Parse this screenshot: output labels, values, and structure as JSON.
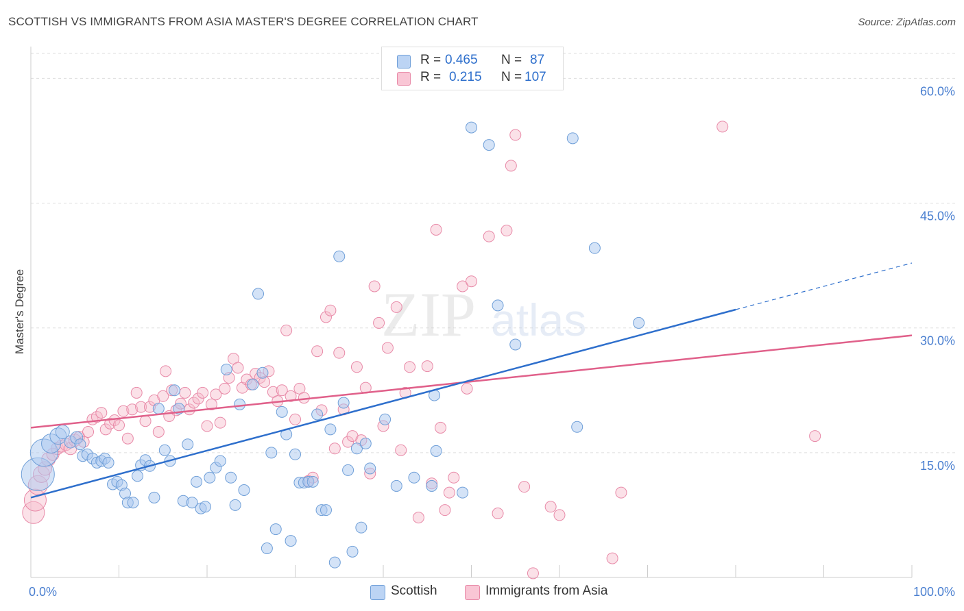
{
  "header": {
    "title": "SCOTTISH VS IMMIGRANTS FROM ASIA MASTER'S DEGREE CORRELATION CHART",
    "source": "Source: ZipAtlas.com"
  },
  "watermark": {
    "zip": "ZIP",
    "atlas": "atlas"
  },
  "legend": {
    "rows": [
      {
        "r_label": "R =",
        "r_value": "0.465",
        "n_label": "N =",
        "n_value": "87"
      },
      {
        "r_label": "R =",
        "r_value": "0.215",
        "n_label": "N =",
        "n_value": "107"
      }
    ]
  },
  "colors": {
    "blue_fill": "#a9c8f0",
    "blue_stroke": "#6f9fd8",
    "blue_line": "#2e6fcc",
    "pink_fill": "#f6bccd",
    "pink_stroke": "#e88aa8",
    "pink_line": "#e0608a",
    "tick_label": "#4a7fd0",
    "grid": "#dddddd"
  },
  "chart_data": {
    "type": "scatter",
    "title": "SCOTTISH VS IMMIGRANTS FROM ASIA MASTER'S DEGREE CORRELATION CHART",
    "xlabel": "",
    "ylabel": "Master's Degree",
    "xlim": [
      0,
      100
    ],
    "ylim": [
      0,
      63
    ],
    "x_tick_labels": [
      "0.0%",
      "100.0%"
    ],
    "y_ticks": [
      15,
      30,
      45,
      60
    ],
    "y_tick_labels": [
      "15.0%",
      "30.0%",
      "45.0%",
      "60.0%"
    ],
    "grid": true,
    "legend_position": "top-center",
    "series": [
      {
        "name": "Scottish",
        "r": 0.465,
        "n": 87,
        "trend": {
          "x0": 0,
          "y0": 9.6,
          "x1": 80,
          "y1": 32.2,
          "dashed_to_x": 100,
          "dashed_to_y": 37.8
        },
        "points": [
          [
            0.8,
            12.4,
            24
          ],
          [
            1.5,
            15.0,
            20
          ],
          [
            2.3,
            16.1,
            14
          ],
          [
            3.1,
            17.0,
            12
          ],
          [
            3.6,
            17.5,
            10
          ],
          [
            4.5,
            16.3,
            9
          ],
          [
            5.2,
            16.8,
            9
          ],
          [
            5.6,
            16.0,
            8
          ],
          [
            5.9,
            14.6,
            8
          ],
          [
            6.4,
            14.8,
            8
          ],
          [
            7.0,
            14.3,
            8
          ],
          [
            7.5,
            13.8,
            8
          ],
          [
            8.0,
            14.0,
            8
          ],
          [
            8.4,
            14.3,
            8
          ],
          [
            8.8,
            13.8,
            8
          ],
          [
            9.3,
            11.2,
            8
          ],
          [
            9.8,
            11.5,
            8
          ],
          [
            10.3,
            11.1,
            8
          ],
          [
            10.7,
            10.1,
            8
          ],
          [
            11.0,
            9.0,
            8
          ],
          [
            11.6,
            9.0,
            8
          ],
          [
            12.1,
            12.2,
            8
          ],
          [
            12.5,
            13.5,
            8
          ],
          [
            13.0,
            14.1,
            8
          ],
          [
            13.5,
            13.4,
            8
          ],
          [
            14.0,
            9.6,
            8
          ],
          [
            14.5,
            20.3,
            8
          ],
          [
            15.2,
            15.3,
            8
          ],
          [
            15.8,
            14.0,
            8
          ],
          [
            16.3,
            22.5,
            8
          ],
          [
            16.8,
            20.3,
            8
          ],
          [
            17.3,
            9.2,
            8
          ],
          [
            17.8,
            16.0,
            8
          ],
          [
            18.3,
            9.0,
            8
          ],
          [
            18.8,
            11.5,
            8
          ],
          [
            19.3,
            8.3,
            8
          ],
          [
            19.8,
            8.5,
            8
          ],
          [
            20.3,
            12.0,
            8
          ],
          [
            21.0,
            13.2,
            8
          ],
          [
            21.5,
            14.0,
            8
          ],
          [
            22.2,
            25.0,
            8
          ],
          [
            22.7,
            12.0,
            8
          ],
          [
            23.2,
            8.7,
            8
          ],
          [
            23.7,
            20.8,
            8
          ],
          [
            24.2,
            10.5,
            8
          ],
          [
            25.2,
            23.2,
            8
          ],
          [
            25.8,
            34.1,
            8
          ],
          [
            26.3,
            24.6,
            8
          ],
          [
            26.8,
            3.5,
            8
          ],
          [
            27.3,
            15.0,
            8
          ],
          [
            27.8,
            5.8,
            8
          ],
          [
            28.5,
            19.9,
            8
          ],
          [
            29.0,
            17.2,
            8
          ],
          [
            29.5,
            4.4,
            8
          ],
          [
            30.0,
            14.8,
            8
          ],
          [
            30.5,
            11.4,
            8
          ],
          [
            31.0,
            11.4,
            8
          ],
          [
            31.5,
            11.5,
            8
          ],
          [
            32.0,
            11.5,
            8
          ],
          [
            32.5,
            19.6,
            8
          ],
          [
            33.0,
            8.1,
            8
          ],
          [
            33.5,
            8.1,
            8
          ],
          [
            34.0,
            17.8,
            8
          ],
          [
            34.5,
            1.8,
            8
          ],
          [
            35.0,
            38.6,
            8
          ],
          [
            35.5,
            21.0,
            8
          ],
          [
            36.0,
            12.9,
            8
          ],
          [
            36.5,
            3.1,
            8
          ],
          [
            37.0,
            15.5,
            8
          ],
          [
            37.5,
            6.0,
            8
          ],
          [
            38.0,
            16.1,
            8
          ],
          [
            38.5,
            13.1,
            8
          ],
          [
            40.2,
            19.0,
            8
          ],
          [
            41.5,
            11.0,
            8
          ],
          [
            43.5,
            12.0,
            8
          ],
          [
            45.5,
            11.0,
            8
          ],
          [
            45.8,
            21.9,
            8
          ],
          [
            46.0,
            15.2,
            8
          ],
          [
            49.0,
            10.2,
            8
          ],
          [
            50.0,
            54.1,
            8
          ],
          [
            52.0,
            52.0,
            8
          ],
          [
            53.0,
            32.7,
            8
          ],
          [
            55.0,
            28.0,
            8
          ],
          [
            61.5,
            52.8,
            8
          ],
          [
            62.0,
            18.1,
            8
          ],
          [
            64.0,
            39.6,
            8
          ],
          [
            69.0,
            30.6,
            8
          ]
        ]
      },
      {
        "name": "Immigrants from Asia",
        "r": 0.215,
        "n": 107,
        "trend": {
          "x0": 0,
          "y0": 18.0,
          "x1": 100,
          "y1": 29.1
        },
        "points": [
          [
            0.3,
            7.8,
            16
          ],
          [
            0.5,
            9.3,
            16
          ],
          [
            0.8,
            11.1,
            14
          ],
          [
            1.2,
            12.4,
            12
          ],
          [
            1.6,
            13.1,
            10
          ],
          [
            2.0,
            14.2,
            10
          ],
          [
            2.5,
            14.8,
            9
          ],
          [
            3.0,
            15.5,
            9
          ],
          [
            3.5,
            15.8,
            9
          ],
          [
            4.0,
            16.0,
            9
          ],
          [
            4.5,
            15.5,
            9
          ],
          [
            5.0,
            16.5,
            9
          ],
          [
            5.5,
            16.9,
            8
          ],
          [
            6.0,
            16.3,
            8
          ],
          [
            6.5,
            17.5,
            8
          ],
          [
            7.0,
            19.0,
            8
          ],
          [
            7.5,
            19.3,
            8
          ],
          [
            8.0,
            19.8,
            8
          ],
          [
            8.5,
            17.8,
            8
          ],
          [
            9.0,
            18.5,
            8
          ],
          [
            9.5,
            18.9,
            8
          ],
          [
            10.0,
            18.3,
            8
          ],
          [
            10.5,
            20.0,
            8
          ],
          [
            11.0,
            16.7,
            8
          ],
          [
            11.5,
            20.2,
            8
          ],
          [
            12.0,
            22.2,
            8
          ],
          [
            12.5,
            20.5,
            8
          ],
          [
            13.0,
            18.8,
            8
          ],
          [
            13.5,
            20.5,
            8
          ],
          [
            14.0,
            21.3,
            8
          ],
          [
            14.5,
            17.5,
            8
          ],
          [
            15.0,
            21.8,
            8
          ],
          [
            15.3,
            24.8,
            8
          ],
          [
            15.7,
            19.4,
            8
          ],
          [
            16.0,
            22.5,
            8
          ],
          [
            16.5,
            20.1,
            8
          ],
          [
            17.0,
            20.9,
            8
          ],
          [
            17.5,
            22.2,
            8
          ],
          [
            18.0,
            20.2,
            8
          ],
          [
            18.5,
            21.0,
            8
          ],
          [
            19.0,
            21.5,
            8
          ],
          [
            19.5,
            22.2,
            8
          ],
          [
            20.0,
            18.2,
            8
          ],
          [
            20.5,
            20.8,
            8
          ],
          [
            21.0,
            22.0,
            8
          ],
          [
            21.5,
            18.6,
            8
          ],
          [
            22.0,
            22.7,
            8
          ],
          [
            22.5,
            24.0,
            8
          ],
          [
            23.0,
            26.3,
            8
          ],
          [
            23.5,
            25.2,
            8
          ],
          [
            24.0,
            22.8,
            8
          ],
          [
            24.5,
            23.8,
            8
          ],
          [
            25.0,
            23.2,
            8
          ],
          [
            25.5,
            24.5,
            8
          ],
          [
            26.0,
            24.0,
            8
          ],
          [
            26.5,
            23.5,
            8
          ],
          [
            27.0,
            24.8,
            8
          ],
          [
            27.5,
            22.3,
            8
          ],
          [
            28.0,
            21.2,
            8
          ],
          [
            28.5,
            22.5,
            8
          ],
          [
            29.0,
            29.7,
            8
          ],
          [
            29.5,
            21.8,
            8
          ],
          [
            30.0,
            19.0,
            8
          ],
          [
            30.5,
            22.7,
            8
          ],
          [
            31.0,
            21.6,
            8
          ],
          [
            31.5,
            11.6,
            8
          ],
          [
            32.0,
            12.0,
            8
          ],
          [
            32.5,
            27.2,
            8
          ],
          [
            33.0,
            20.1,
            8
          ],
          [
            33.5,
            31.3,
            8
          ],
          [
            34.0,
            32.1,
            8
          ],
          [
            34.5,
            15.5,
            8
          ],
          [
            35.0,
            27.0,
            8
          ],
          [
            35.5,
            20.2,
            8
          ],
          [
            36.0,
            16.3,
            8
          ],
          [
            36.5,
            17.0,
            8
          ],
          [
            37.0,
            25.3,
            8
          ],
          [
            37.5,
            16.5,
            8
          ],
          [
            38.0,
            22.8,
            8
          ],
          [
            38.5,
            12.5,
            8
          ],
          [
            39.0,
            35.0,
            8
          ],
          [
            39.5,
            30.6,
            8
          ],
          [
            40.0,
            18.2,
            8
          ],
          [
            40.5,
            27.6,
            8
          ],
          [
            41.5,
            32.5,
            8
          ],
          [
            42.0,
            15.3,
            8
          ],
          [
            42.5,
            22.2,
            8
          ],
          [
            43.0,
            25.3,
            8
          ],
          [
            44.0,
            7.2,
            8
          ],
          [
            45.0,
            25.4,
            8
          ],
          [
            45.5,
            11.3,
            8
          ],
          [
            46.0,
            41.8,
            8
          ],
          [
            46.5,
            18.0,
            8
          ],
          [
            47.0,
            8.1,
            8
          ],
          [
            47.5,
            10.2,
            8
          ],
          [
            48.0,
            12.0,
            8
          ],
          [
            49.0,
            35.0,
            8
          ],
          [
            49.5,
            22.7,
            8
          ],
          [
            50.0,
            35.6,
            8
          ],
          [
            52.0,
            41.0,
            8
          ],
          [
            53.0,
            7.7,
            8
          ],
          [
            54.0,
            41.7,
            8
          ],
          [
            54.5,
            49.5,
            8
          ],
          [
            55.0,
            53.2,
            8
          ],
          [
            56.0,
            10.9,
            8
          ],
          [
            57.0,
            0.5,
            8
          ],
          [
            59.0,
            8.5,
            8
          ],
          [
            60.0,
            7.5,
            8
          ],
          [
            66.0,
            2.3,
            8
          ],
          [
            67.0,
            10.2,
            8
          ],
          [
            78.5,
            54.2,
            8
          ],
          [
            89.0,
            17.0,
            8
          ]
        ]
      }
    ]
  },
  "bottom_legend": {
    "items": [
      "Scottish",
      "Immigrants from Asia"
    ]
  }
}
